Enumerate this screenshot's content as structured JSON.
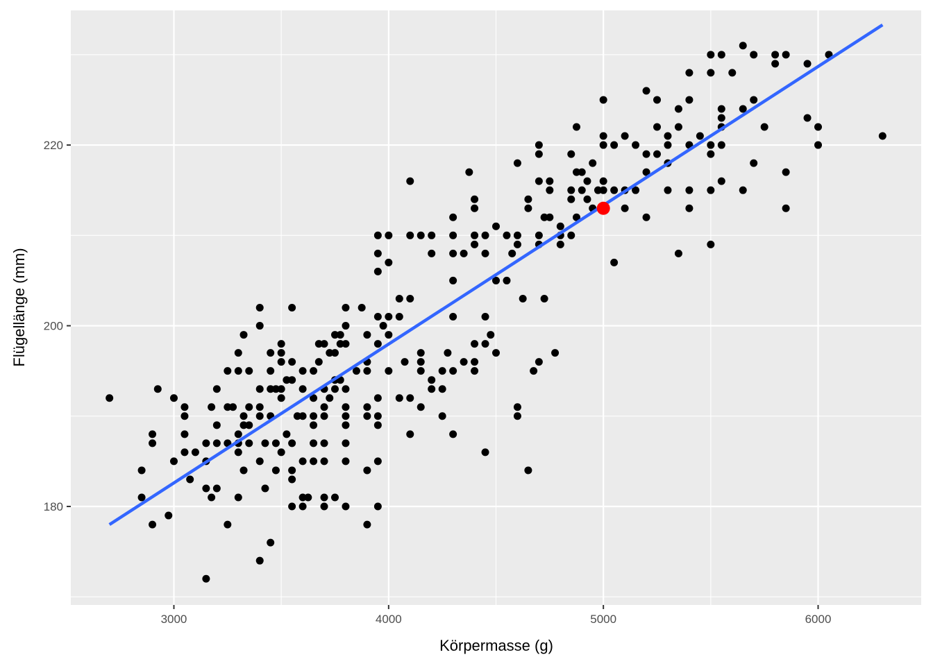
{
  "chart_data": {
    "type": "scatter",
    "title": "",
    "xlabel": "Körpermasse (g)",
    "ylabel": "Flügellänge (mm)",
    "xlim": [
      2520,
      6480
    ],
    "ylim": [
      169.1,
      234.9
    ],
    "x_ticks": [
      3000,
      4000,
      5000,
      6000
    ],
    "y_ticks": [
      180,
      200,
      220
    ],
    "x_tick_labels": [
      "3000",
      "4000",
      "5000",
      "6000"
    ],
    "y_tick_labels": [
      "180",
      "200",
      "220"
    ],
    "grid": true,
    "background": "#ebebeb",
    "grid_color": "#ffffff",
    "point_color": "#000000",
    "points": [
      [
        2700,
        192
      ],
      [
        2850,
        184
      ],
      [
        2850,
        181
      ],
      [
        2900,
        178
      ],
      [
        2900,
        187
      ],
      [
        2900,
        188
      ],
      [
        2925,
        193
      ],
      [
        2975,
        179
      ],
      [
        3000,
        192
      ],
      [
        3000,
        185
      ],
      [
        3050,
        191
      ],
      [
        3050,
        190
      ],
      [
        3050,
        188
      ],
      [
        3050,
        186
      ],
      [
        3075,
        183
      ],
      [
        3100,
        186
      ],
      [
        3150,
        172
      ],
      [
        3150,
        182
      ],
      [
        3150,
        185
      ],
      [
        3150,
        187
      ],
      [
        3175,
        181
      ],
      [
        3175,
        191
      ],
      [
        3200,
        193
      ],
      [
        3200,
        189
      ],
      [
        3200,
        187
      ],
      [
        3200,
        182
      ],
      [
        3250,
        195
      ],
      [
        3250,
        191
      ],
      [
        3250,
        187
      ],
      [
        3250,
        178
      ],
      [
        3275,
        191
      ],
      [
        3300,
        197
      ],
      [
        3300,
        195
      ],
      [
        3300,
        188
      ],
      [
        3300,
        187
      ],
      [
        3300,
        186
      ],
      [
        3300,
        181
      ],
      [
        3325,
        199
      ],
      [
        3325,
        190
      ],
      [
        3325,
        184
      ],
      [
        3325,
        189
      ],
      [
        3350,
        195
      ],
      [
        3350,
        191
      ],
      [
        3350,
        189
      ],
      [
        3350,
        187
      ],
      [
        3400,
        202
      ],
      [
        3400,
        200
      ],
      [
        3400,
        193
      ],
      [
        3400,
        191
      ],
      [
        3400,
        190
      ],
      [
        3400,
        185
      ],
      [
        3400,
        174
      ],
      [
        3425,
        187
      ],
      [
        3425,
        182
      ],
      [
        3450,
        197
      ],
      [
        3450,
        195
      ],
      [
        3450,
        193
      ],
      [
        3450,
        190
      ],
      [
        3450,
        176
      ],
      [
        3475,
        193
      ],
      [
        3475,
        187
      ],
      [
        3475,
        184
      ],
      [
        3500,
        198
      ],
      [
        3500,
        197
      ],
      [
        3500,
        196
      ],
      [
        3500,
        193
      ],
      [
        3500,
        192
      ],
      [
        3500,
        186
      ],
      [
        3525,
        194
      ],
      [
        3525,
        188
      ],
      [
        3550,
        202
      ],
      [
        3550,
        196
      ],
      [
        3550,
        194
      ],
      [
        3550,
        187
      ],
      [
        3550,
        184
      ],
      [
        3550,
        183
      ],
      [
        3550,
        180
      ],
      [
        3575,
        190
      ],
      [
        3600,
        195
      ],
      [
        3600,
        193
      ],
      [
        3600,
        190
      ],
      [
        3600,
        185
      ],
      [
        3600,
        181
      ],
      [
        3600,
        180
      ],
      [
        3625,
        181
      ],
      [
        3650,
        195
      ],
      [
        3650,
        192
      ],
      [
        3650,
        190
      ],
      [
        3650,
        189
      ],
      [
        3650,
        187
      ],
      [
        3650,
        185
      ],
      [
        3675,
        196
      ],
      [
        3675,
        198
      ],
      [
        3700,
        198
      ],
      [
        3700,
        193
      ],
      [
        3700,
        191
      ],
      [
        3700,
        190
      ],
      [
        3700,
        187
      ],
      [
        3700,
        185
      ],
      [
        3700,
        181
      ],
      [
        3700,
        180
      ],
      [
        3725,
        192
      ],
      [
        3725,
        197
      ],
      [
        3750,
        199
      ],
      [
        3750,
        197
      ],
      [
        3750,
        194
      ],
      [
        3750,
        193
      ],
      [
        3750,
        181
      ],
      [
        3775,
        199
      ],
      [
        3775,
        198
      ],
      [
        3775,
        194
      ],
      [
        3800,
        202
      ],
      [
        3800,
        200
      ],
      [
        3800,
        198
      ],
      [
        3800,
        193
      ],
      [
        3800,
        191
      ],
      [
        3800,
        190
      ],
      [
        3800,
        189
      ],
      [
        3800,
        187
      ],
      [
        3800,
        185
      ],
      [
        3800,
        180
      ],
      [
        3850,
        195
      ],
      [
        3875,
        202
      ],
      [
        3900,
        199
      ],
      [
        3900,
        196
      ],
      [
        3900,
        195
      ],
      [
        3900,
        191
      ],
      [
        3900,
        190
      ],
      [
        3900,
        184
      ],
      [
        3900,
        178
      ],
      [
        3950,
        210
      ],
      [
        3950,
        208
      ],
      [
        3950,
        206
      ],
      [
        3950,
        201
      ],
      [
        3950,
        198
      ],
      [
        3950,
        192
      ],
      [
        3950,
        190
      ],
      [
        3950,
        189
      ],
      [
        3950,
        185
      ],
      [
        3950,
        180
      ],
      [
        3975,
        200
      ],
      [
        4000,
        210
      ],
      [
        4000,
        207
      ],
      [
        4000,
        201
      ],
      [
        4000,
        199
      ],
      [
        4000,
        195
      ],
      [
        4050,
        203
      ],
      [
        4050,
        201
      ],
      [
        4050,
        192
      ],
      [
        4075,
        196
      ],
      [
        4100,
        216
      ],
      [
        4100,
        210
      ],
      [
        4100,
        203
      ],
      [
        4100,
        192
      ],
      [
        4100,
        188
      ],
      [
        4150,
        210
      ],
      [
        4150,
        197
      ],
      [
        4150,
        196
      ],
      [
        4150,
        195
      ],
      [
        4150,
        191
      ],
      [
        4200,
        210
      ],
      [
        4200,
        208
      ],
      [
        4200,
        194
      ],
      [
        4200,
        193
      ],
      [
        4250,
        195
      ],
      [
        4250,
        193
      ],
      [
        4250,
        190
      ],
      [
        4275,
        197
      ],
      [
        4300,
        212
      ],
      [
        4300,
        210
      ],
      [
        4300,
        208
      ],
      [
        4300,
        205
      ],
      [
        4300,
        201
      ],
      [
        4300,
        195
      ],
      [
        4300,
        188
      ],
      [
        4350,
        208
      ],
      [
        4350,
        196
      ],
      [
        4375,
        217
      ],
      [
        4400,
        214
      ],
      [
        4400,
        213
      ],
      [
        4400,
        210
      ],
      [
        4400,
        209
      ],
      [
        4400,
        198
      ],
      [
        4400,
        196
      ],
      [
        4400,
        195
      ],
      [
        4450,
        210
      ],
      [
        4450,
        208
      ],
      [
        4450,
        201
      ],
      [
        4450,
        198
      ],
      [
        4450,
        186
      ],
      [
        4475,
        199
      ],
      [
        4500,
        211
      ],
      [
        4500,
        205
      ],
      [
        4500,
        197
      ],
      [
        4550,
        210
      ],
      [
        4550,
        205
      ],
      [
        4575,
        208
      ],
      [
        4600,
        218
      ],
      [
        4600,
        210
      ],
      [
        4600,
        209
      ],
      [
        4600,
        191
      ],
      [
        4600,
        190
      ],
      [
        4625,
        203
      ],
      [
        4650,
        214
      ],
      [
        4650,
        213
      ],
      [
        4650,
        184
      ],
      [
        4675,
        195
      ],
      [
        4700,
        220
      ],
      [
        4700,
        219
      ],
      [
        4700,
        216
      ],
      [
        4700,
        210
      ],
      [
        4700,
        209
      ],
      [
        4700,
        196
      ],
      [
        4725,
        212
      ],
      [
        4725,
        203
      ],
      [
        4750,
        216
      ],
      [
        4750,
        215
      ],
      [
        4750,
        212
      ],
      [
        4775,
        197
      ],
      [
        4800,
        211
      ],
      [
        4800,
        210
      ],
      [
        4800,
        209
      ],
      [
        4850,
        219
      ],
      [
        4850,
        215
      ],
      [
        4850,
        214
      ],
      [
        4850,
        210
      ],
      [
        4875,
        222
      ],
      [
        4875,
        217
      ],
      [
        4875,
        212
      ],
      [
        4900,
        217
      ],
      [
        4900,
        215
      ],
      [
        4925,
        216
      ],
      [
        4925,
        214
      ],
      [
        4950,
        218
      ],
      [
        4950,
        213
      ],
      [
        4975,
        215
      ],
      [
        5000,
        225
      ],
      [
        5000,
        221
      ],
      [
        5000,
        220
      ],
      [
        5000,
        216
      ],
      [
        5000,
        215
      ],
      [
        5050,
        220
      ],
      [
        5050,
        215
      ],
      [
        5050,
        207
      ],
      [
        5100,
        221
      ],
      [
        5100,
        215
      ],
      [
        5100,
        213
      ],
      [
        5150,
        220
      ],
      [
        5150,
        215
      ],
      [
        5200,
        226
      ],
      [
        5200,
        219
      ],
      [
        5200,
        217
      ],
      [
        5200,
        212
      ],
      [
        5250,
        225
      ],
      [
        5250,
        222
      ],
      [
        5250,
        219
      ],
      [
        5300,
        221
      ],
      [
        5300,
        220
      ],
      [
        5300,
        218
      ],
      [
        5300,
        215
      ],
      [
        5350,
        224
      ],
      [
        5350,
        222
      ],
      [
        5350,
        208
      ],
      [
        5400,
        228
      ],
      [
        5400,
        225
      ],
      [
        5400,
        220
      ],
      [
        5400,
        215
      ],
      [
        5400,
        213
      ],
      [
        5450,
        221
      ],
      [
        5500,
        230
      ],
      [
        5500,
        228
      ],
      [
        5500,
        220
      ],
      [
        5500,
        219
      ],
      [
        5500,
        215
      ],
      [
        5500,
        209
      ],
      [
        5550,
        230
      ],
      [
        5550,
        224
      ],
      [
        5550,
        223
      ],
      [
        5550,
        222
      ],
      [
        5550,
        220
      ],
      [
        5550,
        216
      ],
      [
        5600,
        228
      ],
      [
        5650,
        231
      ],
      [
        5650,
        224
      ],
      [
        5650,
        215
      ],
      [
        5700,
        230
      ],
      [
        5700,
        225
      ],
      [
        5700,
        218
      ],
      [
        5750,
        222
      ],
      [
        5800,
        230
      ],
      [
        5800,
        229
      ],
      [
        5850,
        230
      ],
      [
        5850,
        217
      ],
      [
        5850,
        213
      ],
      [
        5950,
        229
      ],
      [
        5950,
        223
      ],
      [
        6000,
        222
      ],
      [
        6000,
        220
      ],
      [
        6050,
        230
      ],
      [
        6300,
        221
      ]
    ],
    "regression_line": {
      "color": "#3366ff",
      "x": [
        2700,
        6300
      ],
      "y": [
        178.0,
        233.3
      ]
    },
    "highlight_point": {
      "x": 5000,
      "y": 213,
      "color": "#ff0000"
    }
  }
}
